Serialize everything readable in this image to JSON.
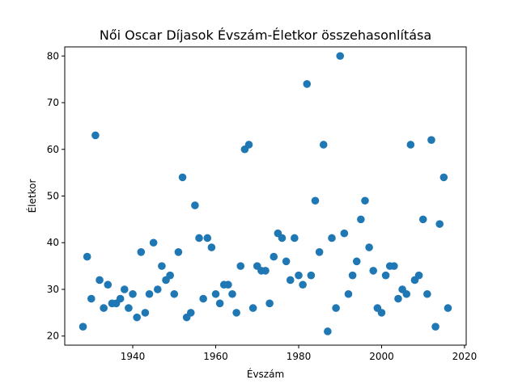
{
  "chart_data": {
    "type": "scatter",
    "title": "Női Oscar Díjasok Évszám-Életkor összehasonlítása",
    "xlabel": "Évszám",
    "ylabel": "Életkor",
    "xlim": [
      1923.6,
      2020.4
    ],
    "ylim": [
      18.05,
      81.95
    ],
    "xticks": [
      1940,
      1960,
      1980,
      2000,
      2020
    ],
    "yticks": [
      20,
      30,
      40,
      50,
      60,
      70,
      80
    ],
    "grid": false,
    "marker_color": "#1f77b4",
    "points": [
      {
        "x": 1928,
        "y": 22
      },
      {
        "x": 1929,
        "y": 37
      },
      {
        "x": 1930,
        "y": 28
      },
      {
        "x": 1931,
        "y": 63
      },
      {
        "x": 1932,
        "y": 32
      },
      {
        "x": 1933,
        "y": 26
      },
      {
        "x": 1934,
        "y": 31
      },
      {
        "x": 1935,
        "y": 27
      },
      {
        "x": 1936,
        "y": 27
      },
      {
        "x": 1937,
        "y": 28
      },
      {
        "x": 1938,
        "y": 30
      },
      {
        "x": 1939,
        "y": 26
      },
      {
        "x": 1940,
        "y": 29
      },
      {
        "x": 1941,
        "y": 24
      },
      {
        "x": 1942,
        "y": 38
      },
      {
        "x": 1943,
        "y": 25
      },
      {
        "x": 1944,
        "y": 29
      },
      {
        "x": 1945,
        "y": 40
      },
      {
        "x": 1946,
        "y": 30
      },
      {
        "x": 1947,
        "y": 35
      },
      {
        "x": 1948,
        "y": 32
      },
      {
        "x": 1949,
        "y": 33
      },
      {
        "x": 1950,
        "y": 29
      },
      {
        "x": 1951,
        "y": 38
      },
      {
        "x": 1952,
        "y": 54
      },
      {
        "x": 1953,
        "y": 24
      },
      {
        "x": 1954,
        "y": 25
      },
      {
        "x": 1955,
        "y": 48
      },
      {
        "x": 1956,
        "y": 41
      },
      {
        "x": 1957,
        "y": 28
      },
      {
        "x": 1958,
        "y": 41
      },
      {
        "x": 1959,
        "y": 39
      },
      {
        "x": 1960,
        "y": 29
      },
      {
        "x": 1961,
        "y": 27
      },
      {
        "x": 1962,
        "y": 31
      },
      {
        "x": 1963,
        "y": 31
      },
      {
        "x": 1964,
        "y": 29
      },
      {
        "x": 1965,
        "y": 25
      },
      {
        "x": 1966,
        "y": 35
      },
      {
        "x": 1967,
        "y": 60
      },
      {
        "x": 1968,
        "y": 61
      },
      {
        "x": 1969,
        "y": 26
      },
      {
        "x": 1970,
        "y": 35
      },
      {
        "x": 1971,
        "y": 34
      },
      {
        "x": 1972,
        "y": 34
      },
      {
        "x": 1973,
        "y": 27
      },
      {
        "x": 1974,
        "y": 37
      },
      {
        "x": 1975,
        "y": 42
      },
      {
        "x": 1976,
        "y": 41
      },
      {
        "x": 1977,
        "y": 36
      },
      {
        "x": 1978,
        "y": 32
      },
      {
        "x": 1979,
        "y": 41
      },
      {
        "x": 1980,
        "y": 33
      },
      {
        "x": 1981,
        "y": 31
      },
      {
        "x": 1982,
        "y": 74
      },
      {
        "x": 1983,
        "y": 33
      },
      {
        "x": 1984,
        "y": 49
      },
      {
        "x": 1985,
        "y": 38
      },
      {
        "x": 1986,
        "y": 61
      },
      {
        "x": 1987,
        "y": 21
      },
      {
        "x": 1988,
        "y": 41
      },
      {
        "x": 1989,
        "y": 26
      },
      {
        "x": 1990,
        "y": 80
      },
      {
        "x": 1991,
        "y": 42
      },
      {
        "x": 1992,
        "y": 29
      },
      {
        "x": 1993,
        "y": 33
      },
      {
        "x": 1994,
        "y": 36
      },
      {
        "x": 1995,
        "y": 45
      },
      {
        "x": 1996,
        "y": 49
      },
      {
        "x": 1997,
        "y": 39
      },
      {
        "x": 1998,
        "y": 34
      },
      {
        "x": 1999,
        "y": 26
      },
      {
        "x": 2000,
        "y": 25
      },
      {
        "x": 2001,
        "y": 33
      },
      {
        "x": 2002,
        "y": 35
      },
      {
        "x": 2003,
        "y": 35
      },
      {
        "x": 2004,
        "y": 28
      },
      {
        "x": 2005,
        "y": 30
      },
      {
        "x": 2006,
        "y": 29
      },
      {
        "x": 2007,
        "y": 61
      },
      {
        "x": 2008,
        "y": 32
      },
      {
        "x": 2009,
        "y": 33
      },
      {
        "x": 2010,
        "y": 45
      },
      {
        "x": 2011,
        "y": 29
      },
      {
        "x": 2012,
        "y": 62
      },
      {
        "x": 2013,
        "y": 22
      },
      {
        "x": 2014,
        "y": 44
      },
      {
        "x": 2015,
        "y": 54
      },
      {
        "x": 2016,
        "y": 26
      }
    ]
  }
}
